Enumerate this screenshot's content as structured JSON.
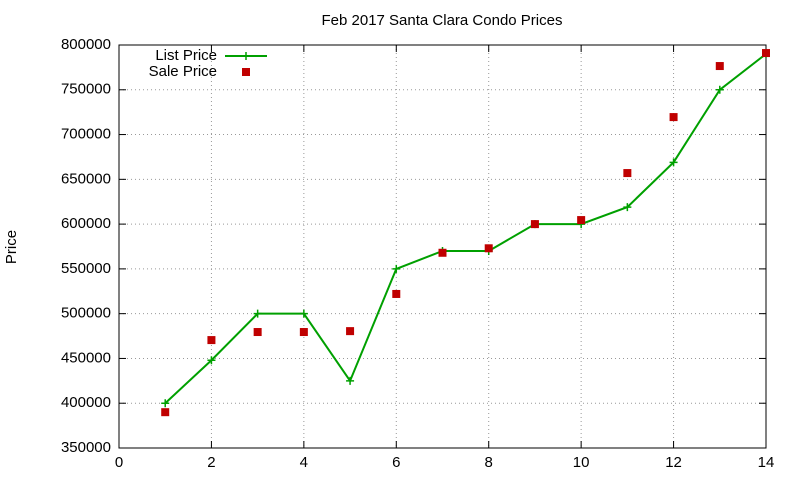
{
  "chart_data": {
    "type": "line",
    "title": "Feb 2017 Santa Clara Condo Prices",
    "y_label": "Price",
    "x": [
      1,
      2,
      3,
      4,
      5,
      6,
      7,
      8,
      9,
      10,
      11,
      12,
      13,
      14
    ],
    "series": [
      {
        "name": "List Price",
        "color": "#00a000",
        "mode": "lines+markers",
        "marker": "plus",
        "values": [
          400000,
          448000,
          500000,
          500000,
          425000,
          550000,
          570000,
          570000,
          600000,
          600000,
          619000,
          669000,
          750000,
          790000
        ]
      },
      {
        "name": "Sale Price",
        "color": "#c00000",
        "mode": "markers",
        "marker": "square",
        "values": [
          390000,
          470500,
          479500,
          479500,
          480500,
          522000,
          568000,
          573000,
          600000,
          604500,
          657000,
          719500,
          776500,
          791000
        ]
      }
    ],
    "xlim": [
      0,
      14
    ],
    "xticks": [
      0,
      2,
      4,
      6,
      8,
      10,
      12,
      14
    ],
    "ylim": [
      350000,
      800000
    ],
    "yticks": [
      350000,
      400000,
      450000,
      500000,
      550000,
      600000,
      650000,
      700000,
      750000,
      800000
    ],
    "grid": true,
    "legend": "top-left"
  }
}
